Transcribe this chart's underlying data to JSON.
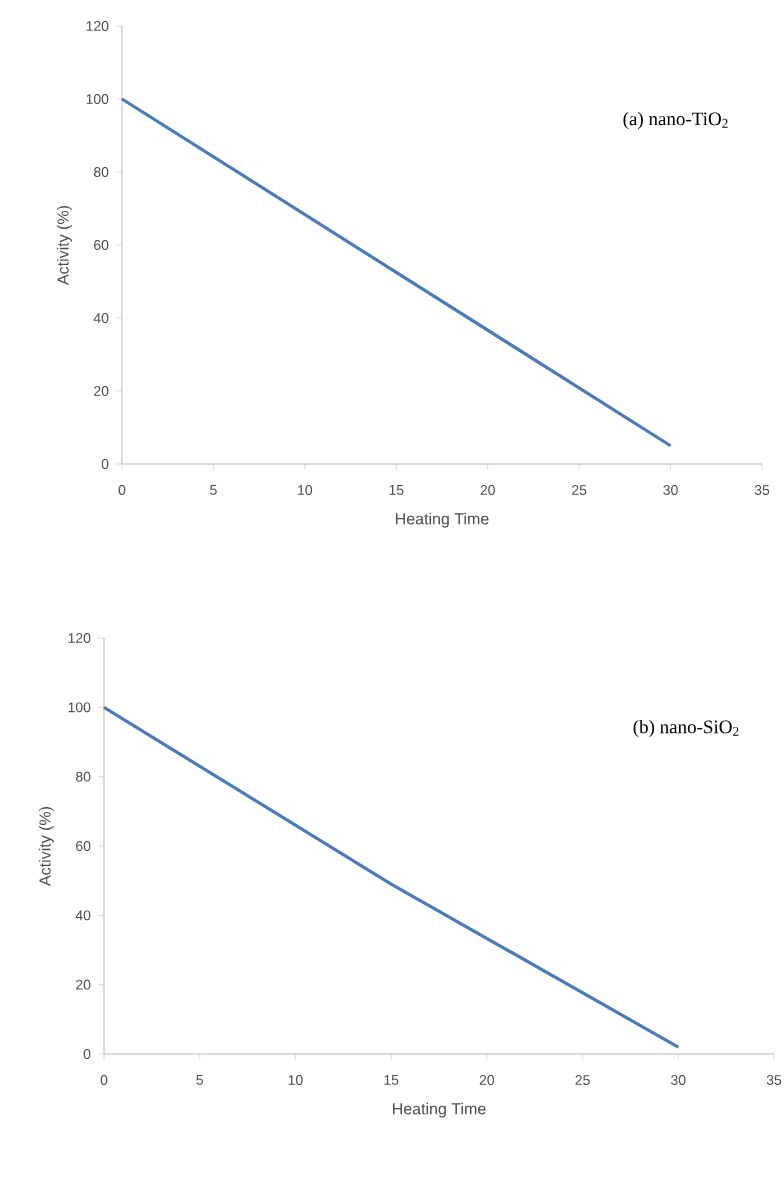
{
  "chart_data": [
    {
      "type": "line",
      "xlabel": "Heating Time",
      "ylabel": "Activity (%)",
      "annotations": [
        "(a) nano-TiO$_{2}$"
      ],
      "x": [
        0,
        30
      ],
      "series": [
        {
          "color": "#4a7ab8",
          "values": [
            100,
            5
          ]
        }
      ],
      "xlim": [
        0,
        35
      ],
      "xticks": [
        0,
        5,
        10,
        15,
        20,
        25,
        30,
        35
      ],
      "ylim": [
        0,
        120
      ],
      "yticks": [
        0,
        20,
        40,
        60,
        80,
        100,
        120
      ],
      "grid": false,
      "marker": "none",
      "line_style": "solid"
    },
    {
      "type": "line",
      "xlabel": "Heating Time",
      "ylabel": "Activity (%)",
      "annotations": [
        "(b) nano-SiO$_{2}$"
      ],
      "x": [
        0,
        15,
        30
      ],
      "series": [
        {
          "color": "#4a7ab8",
          "values": [
            100,
            49,
            2
          ]
        }
      ],
      "xlim": [
        0,
        35
      ],
      "xticks": [
        0,
        5,
        10,
        15,
        20,
        25,
        30,
        35
      ],
      "ylim": [
        0,
        120
      ],
      "yticks": [
        0,
        20,
        40,
        60,
        80,
        100,
        120
      ],
      "grid": false,
      "marker": "none",
      "line_style": "solid"
    }
  ]
}
